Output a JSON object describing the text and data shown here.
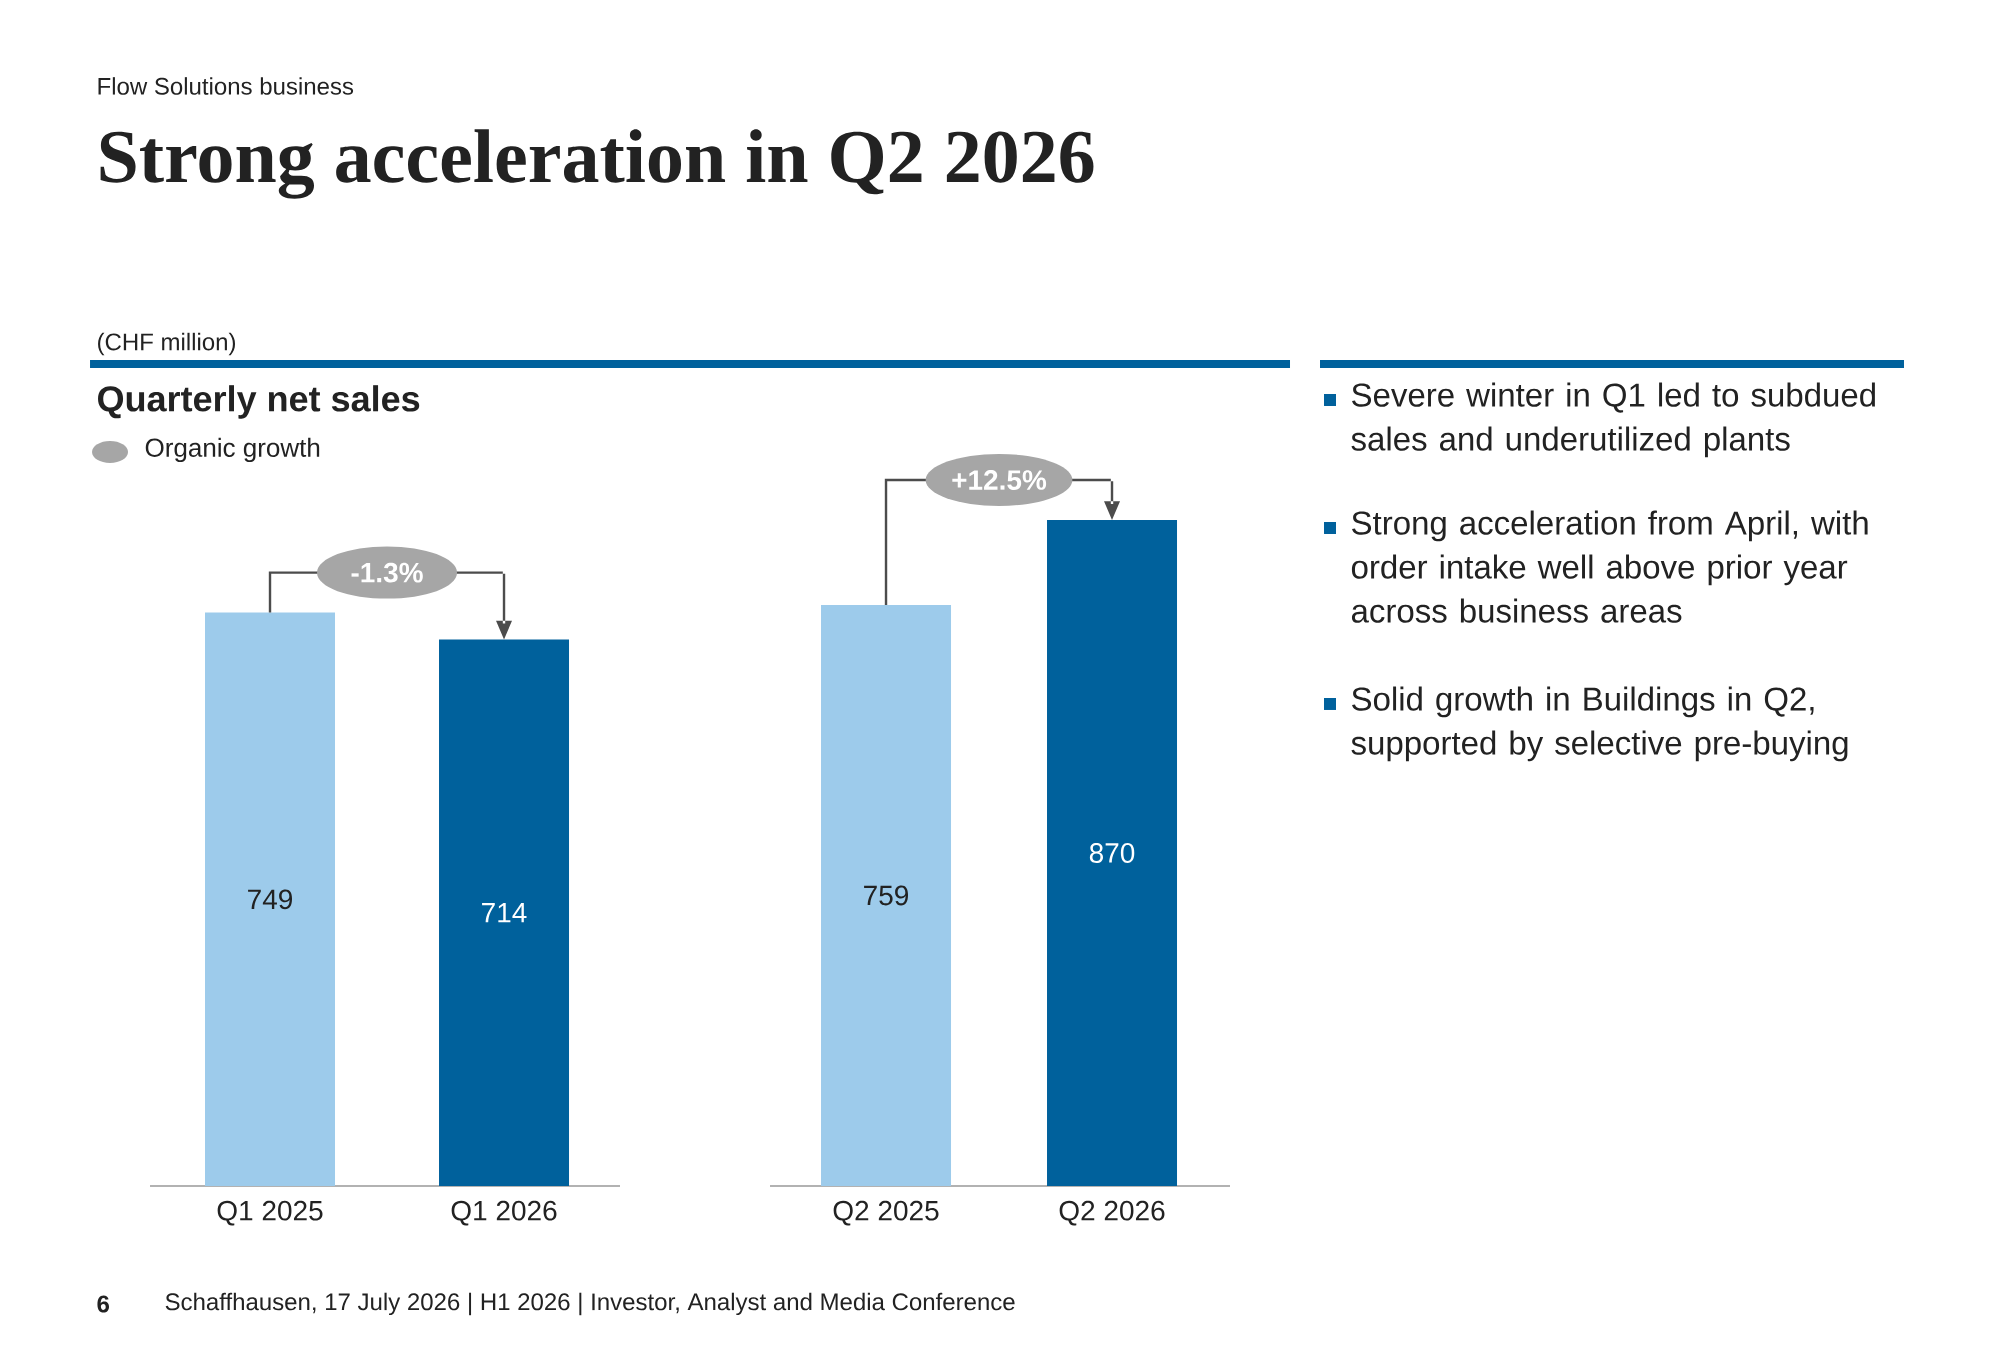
{
  "chart_data": [
    {
      "type": "bar",
      "title": "Strong acceleration in Q2 2026",
      "subtitle": "Quarterly net sales",
      "categories": [
        "Q1 2025",
        "Q1 2026"
      ],
      "values": [
        749,
        714
      ],
      "colors": [
        "#9dcbeb",
        "#00619c"
      ],
      "data_labels": true,
      "annotations": [
        "-1.3%",
        "Flow Solutions business",
        "(CHF million)",
        "Organic growth",
        "6",
        "Schaffhausen, 17 July 2026 | H1 2026 | Investor, Analyst and Media Conference"
      ]
    },
    {
      "type": "bar",
      "categories": [
        "Q2 2025",
        "Q2 2026"
      ],
      "values": [
        759,
        870
      ],
      "colors": [
        "#9dcbeb",
        "#00619c"
      ],
      "data_labels": true,
      "annotations": [
        "+12.5%"
      ]
    },
    {
      "type": "other",
      "annotations": [
        "Severe winter in Q1 led to subdued sales and underutilized plants",
        "Strong acceleration from April, with order intake well above prior year across business areas",
        "Solid growth in Buildings in Q2, supported by selective pre-buying"
      ]
    }
  ]
}
